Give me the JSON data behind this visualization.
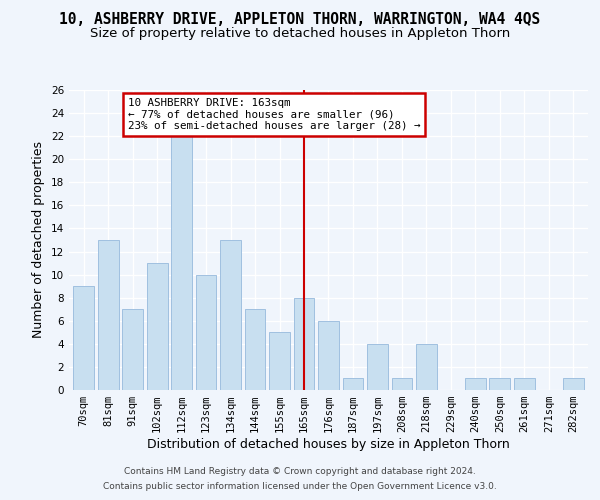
{
  "title": "10, ASHBERRY DRIVE, APPLETON THORN, WARRINGTON, WA4 4QS",
  "subtitle": "Size of property relative to detached houses in Appleton Thorn",
  "xlabel": "Distribution of detached houses by size in Appleton Thorn",
  "ylabel": "Number of detached properties",
  "bar_labels": [
    "70sqm",
    "81sqm",
    "91sqm",
    "102sqm",
    "112sqm",
    "123sqm",
    "134sqm",
    "144sqm",
    "155sqm",
    "165sqm",
    "176sqm",
    "187sqm",
    "197sqm",
    "208sqm",
    "218sqm",
    "229sqm",
    "240sqm",
    "250sqm",
    "261sqm",
    "271sqm",
    "282sqm"
  ],
  "bar_values": [
    9,
    13,
    7,
    11,
    22,
    10,
    13,
    7,
    5,
    8,
    6,
    1,
    4,
    1,
    4,
    0,
    1,
    1,
    1,
    0,
    1
  ],
  "bar_color": "#c8dff0",
  "bar_edge_color": "#a0c0e0",
  "reference_line_x": 9,
  "annotation_text": "10 ASHBERRY DRIVE: 163sqm\n← 77% of detached houses are smaller (96)\n23% of semi-detached houses are larger (28) →",
  "annotation_box_color": "#ffffff",
  "annotation_box_edge_color": "#cc0000",
  "ylim": [
    0,
    26
  ],
  "yticks": [
    0,
    2,
    4,
    6,
    8,
    10,
    12,
    14,
    16,
    18,
    20,
    22,
    24,
    26
  ],
  "footer_line1": "Contains HM Land Registry data © Crown copyright and database right 2024.",
  "footer_line2": "Contains public sector information licensed under the Open Government Licence v3.0.",
  "bg_color": "#f0f5fc",
  "grid_color": "#ffffff",
  "title_fontsize": 10.5,
  "subtitle_fontsize": 9.5,
  "axis_label_fontsize": 9,
  "tick_fontsize": 7.5,
  "footer_fontsize": 6.5
}
